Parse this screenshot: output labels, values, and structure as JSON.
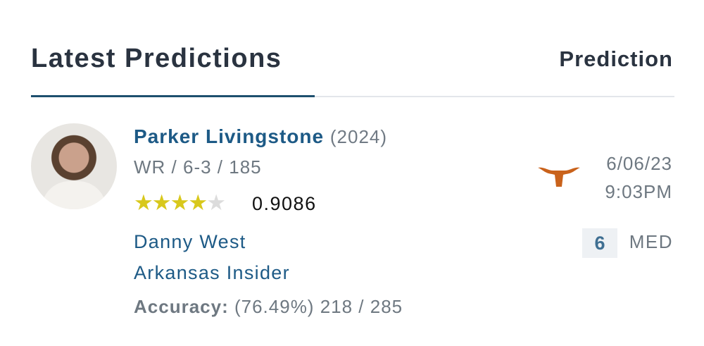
{
  "header": {
    "title": "Latest Predictions",
    "column": "Prediction"
  },
  "prediction": {
    "player": {
      "name": "Parker Livingstone",
      "year": "(2024)",
      "meta": "WR / 6-3 / 185",
      "stars": 4,
      "max_stars": 5,
      "rating": "0.9086"
    },
    "predictor": {
      "name": "Danny West",
      "outlet": "Arkansas Insider",
      "accuracy_label": "Accuracy:",
      "accuracy_value": "(76.49%) 218 / 285"
    },
    "team_logo": "texas-longhorn-icon",
    "team_color": "#c9621b",
    "date": "6/06/23",
    "time": "9:03PM",
    "confidence": "6",
    "confidence_label": "MED"
  }
}
